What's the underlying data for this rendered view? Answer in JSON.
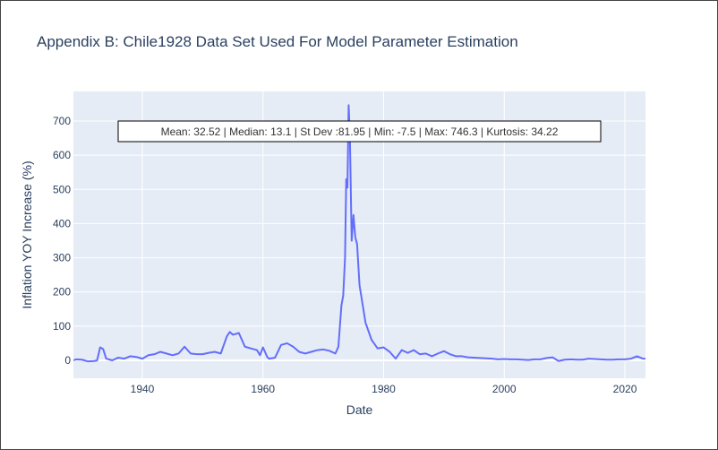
{
  "chart_data": {
    "type": "line",
    "title": "Appendix B: Chile1928 Data Set Used For Model Parameter Estimation",
    "x_label": "Date",
    "y_label": "Inflation YOY Increase (%)",
    "annotation": "Mean: 32.52 | Median: 13.1 | St Dev :81.95 | Min: -7.5 | Max: 746.3 | Kurtosis: 34.22",
    "color": "#636efa",
    "grid": true,
    "xlim": [
      1928.57,
      2023.41
    ],
    "ylim": [
      -52.4,
      786.5
    ],
    "xticks": [
      1940,
      1960,
      1980,
      2000,
      2020
    ],
    "yticks": [
      0,
      100,
      200,
      300,
      400,
      500,
      600,
      700
    ],
    "x": [
      1928.6,
      1929,
      1930,
      1931,
      1932,
      1932.5,
      1933,
      1933.5,
      1934,
      1935,
      1936,
      1937,
      1938,
      1939,
      1940,
      1941,
      1942,
      1943,
      1944,
      1945,
      1946,
      1947,
      1948,
      1949,
      1950,
      1951,
      1952,
      1953,
      1954,
      1954.5,
      1955,
      1956,
      1957,
      1958,
      1959,
      1959.5,
      1960,
      1960.7,
      1961,
      1962,
      1963,
      1964,
      1965,
      1966,
      1967,
      1968,
      1969,
      1970,
      1971,
      1972,
      1972.5,
      1973,
      1973.3,
      1973.6,
      1973.8,
      1974.0,
      1974.2,
      1974.4,
      1974.7,
      1975.0,
      1975.3,
      1975.6,
      1976,
      1977,
      1978,
      1979,
      1980,
      1981,
      1982,
      1983,
      1984,
      1985,
      1986,
      1987,
      1988,
      1989,
      1990,
      1991,
      1992,
      1993,
      1994,
      1995,
      1996,
      1997,
      1998,
      1999,
      2000,
      2001,
      2002,
      2003,
      2004,
      2005,
      2006,
      2007,
      2008,
      2009,
      2010,
      2011,
      2012,
      2013,
      2014,
      2015,
      2016,
      2017,
      2018,
      2019,
      2020,
      2021,
      2022,
      2023,
      2023.4
    ],
    "values": [
      0,
      3,
      2,
      -3,
      -2,
      0,
      38,
      33,
      5,
      0,
      8,
      5,
      12,
      10,
      5,
      15,
      18,
      25,
      20,
      15,
      20,
      40,
      20,
      18,
      18,
      22,
      25,
      20,
      70,
      83,
      75,
      80,
      40,
      35,
      30,
      15,
      38,
      10,
      5,
      8,
      45,
      50,
      40,
      25,
      20,
      25,
      30,
      32,
      28,
      20,
      40,
      160,
      190,
      300,
      530,
      505,
      746.3,
      660,
      350,
      425,
      360,
      340,
      220,
      110,
      60,
      35,
      38,
      25,
      5,
      30,
      22,
      30,
      18,
      20,
      12,
      20,
      27,
      18,
      12,
      12,
      9,
      8,
      7,
      6,
      5,
      3,
      4,
      3,
      3,
      2,
      1,
      3,
      3,
      7,
      9,
      -2,
      2,
      3,
      2,
      2,
      5,
      4,
      3,
      2,
      2,
      3,
      3,
      5,
      12,
      5,
      5
    ]
  }
}
